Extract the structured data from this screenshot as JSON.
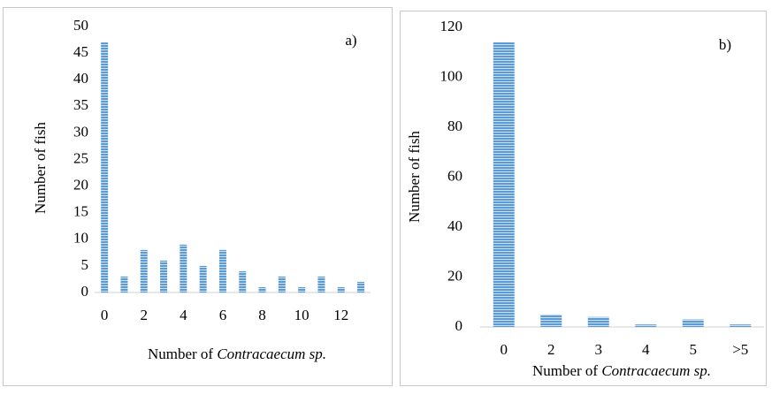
{
  "chart_data": [
    {
      "type": "bar",
      "annotation": "a)",
      "ylabel": "Number of fish",
      "xlabel": {
        "text": "Number of",
        "italic": "Contracaecum sp."
      },
      "categories": [
        "0",
        null,
        "2",
        null,
        "4",
        null,
        "6",
        null,
        "8",
        null,
        "10",
        null,
        "12",
        null
      ],
      "values": [
        47,
        3,
        8,
        6,
        9,
        5,
        8,
        4,
        1,
        3,
        1,
        3,
        1,
        2
      ],
      "color": "#5b9bd5",
      "ylim": [
        0,
        50
      ],
      "yticks": [
        0,
        5,
        10,
        15,
        20,
        25,
        30,
        35,
        40,
        45,
        50
      ]
    },
    {
      "type": "bar",
      "annotation": "b)",
      "ylabel": "Number of fish",
      "xlabel": {
        "text": "Number of",
        "italic": "Contracaecum sp."
      },
      "categories": [
        "0",
        "2",
        "3",
        "4",
        "5",
        ">5"
      ],
      "values": [
        114,
        5,
        4,
        1,
        3,
        1
      ],
      "color": "#5b9bd5",
      "ylim": [
        0,
        120
      ],
      "yticks": [
        0,
        20,
        40,
        60,
        80,
        100,
        120
      ]
    }
  ]
}
